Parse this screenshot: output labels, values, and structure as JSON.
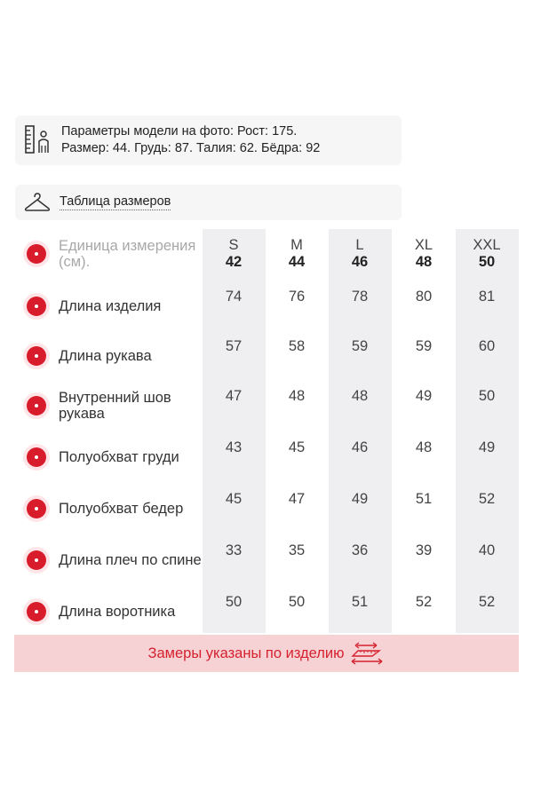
{
  "model": {
    "line1": "Параметры модели на фото: Рост: 175.",
    "line2": "Размер: 44. Грудь: 87. Талия: 62. Бёдра: 92",
    "icon": "ruler-person-icon"
  },
  "size_table_link": {
    "label": "Таблица размеров",
    "icon": "hanger-icon"
  },
  "table": {
    "unit_label": "Единица измерения (см).",
    "sizes": [
      {
        "letter": "S",
        "number": "42"
      },
      {
        "letter": "M",
        "number": "44"
      },
      {
        "letter": "L",
        "number": "46"
      },
      {
        "letter": "XL",
        "number": "48"
      },
      {
        "letter": "XXL",
        "number": "50"
      }
    ],
    "rows": [
      {
        "label": "Длина изделия",
        "values": [
          "74",
          "76",
          "78",
          "80",
          "81"
        ]
      },
      {
        "label": "Длина рукава",
        "values": [
          "57",
          "58",
          "59",
          "59",
          "60"
        ]
      },
      {
        "label": "Внутренний шов рукава",
        "values": [
          "47",
          "48",
          "48",
          "49",
          "50"
        ]
      },
      {
        "label": "Полуобхват груди",
        "values": [
          "43",
          "45",
          "46",
          "48",
          "49"
        ]
      },
      {
        "label": "Полуобхват бедер",
        "values": [
          "45",
          "47",
          "49",
          "51",
          "52"
        ]
      },
      {
        "label": "Длина плеч по спине",
        "values": [
          "33",
          "35",
          "36",
          "39",
          "40"
        ]
      },
      {
        "label": "Длина воротника",
        "values": [
          "50",
          "50",
          "51",
          "52",
          "52"
        ]
      }
    ]
  },
  "footer": {
    "text": "Замеры указаны по изделию",
    "icon": "measure-arrows-icon"
  },
  "colors": {
    "accent": "#d91c2b",
    "footer_bg": "#f7d2d5",
    "column_bg": "#efeff1"
  }
}
